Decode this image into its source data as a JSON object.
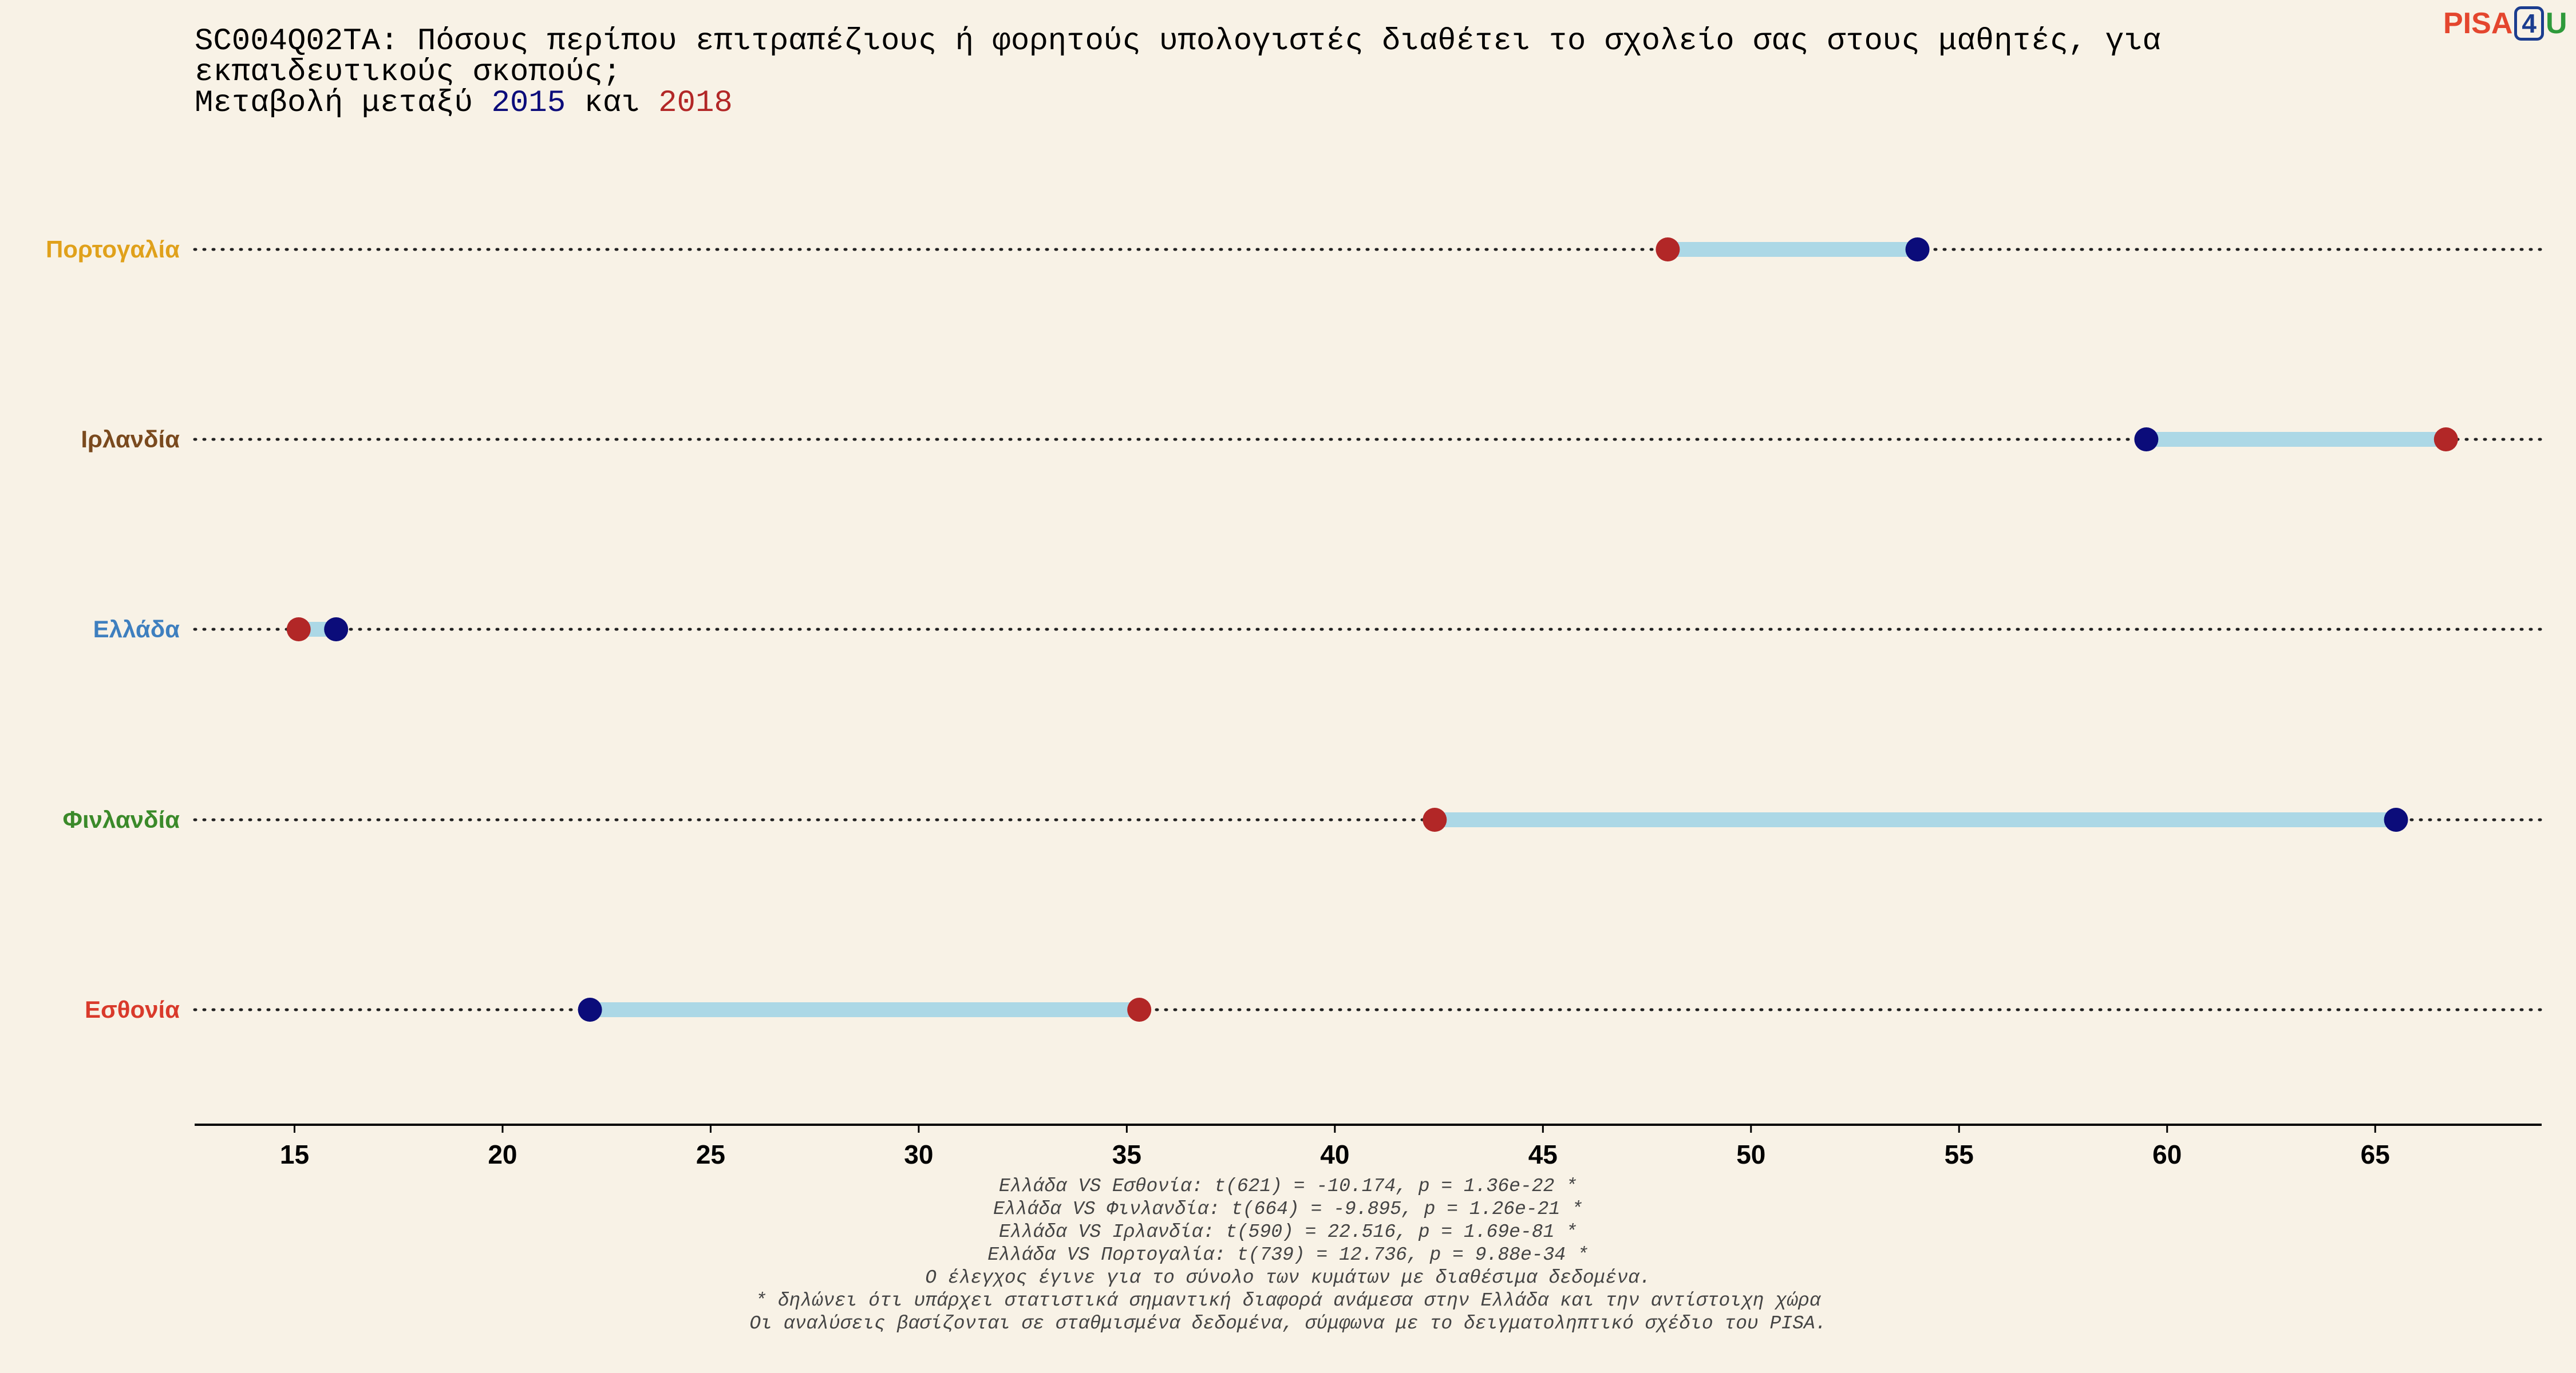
{
  "title": {
    "line1": "SC004Q02TA: Πόσους περίπου επιτραπέζιους ή φορητούς υπολογιστές διαθέτει το σχολείο σας στους μαθητές, για",
    "line2": "εκπαιδευτικούς σκοπούς;",
    "line3_prefix": "Μεταβολή μεταξύ ",
    "year_a": "2015",
    "line3_mid": " και ",
    "year_b": "2018"
  },
  "logo": {
    "pisa": "PISA",
    "four": "4",
    "u": "U"
  },
  "colors": {
    "year_2015": "#0b0c7a",
    "year_2018": "#b22727",
    "connector": "#acd8e6",
    "guide": "#222222",
    "background": "#f8f2e6"
  },
  "chart_data": {
    "type": "dumbbell",
    "xlim": [
      12.6,
      69.0
    ],
    "xticks": [
      15,
      20,
      25,
      30,
      35,
      40,
      45,
      50,
      55,
      60,
      65
    ],
    "series_names": [
      "2015",
      "2018"
    ],
    "categories": [
      {
        "label": "Πορτογαλία",
        "color": "#e0a11b",
        "v2015": 54.0,
        "v2018": 48.0
      },
      {
        "label": "Ιρλανδία",
        "color": "#7a4a1e",
        "v2015": 59.5,
        "v2018": 66.7
      },
      {
        "label": "Ελλάδα",
        "color": "#3e7fbf",
        "v2015": 16.0,
        "v2018": 15.1
      },
      {
        "label": "Φινλανδία",
        "color": "#3b8a2a",
        "v2015": 65.5,
        "v2018": 42.4
      },
      {
        "label": "Εσθονία",
        "color": "#d93a2b",
        "v2015": 22.1,
        "v2018": 35.3
      }
    ]
  },
  "notes": [
    "Ελλάδα VS Εσθονία: t(621) = -10.174, p = 1.36e-22 *",
    "Ελλάδα VS Φινλανδία: t(664) = -9.895, p = 1.26e-21 *",
    "Ελλάδα VS Ιρλανδία: t(590) = 22.516, p = 1.69e-81 *",
    "Ελλάδα VS Πορτογαλία: t(739) = 12.736, p = 9.88e-34 *",
    "Ο έλεγχος έγινε για το σύνολο των κυμάτων με διαθέσιμα δεδομένα.",
    "* δηλώνει ότι υπάρχει στατιστικά σημαντική διαφορά ανάμεσα στην Ελλάδα και την αντίστοιχη χώρα",
    "Οι αναλύσεις βασίζονται σε σταθμισμένα δεδομένα, σύμφωνα με το δειγματοληπτικό σχέδιο του PISA."
  ]
}
